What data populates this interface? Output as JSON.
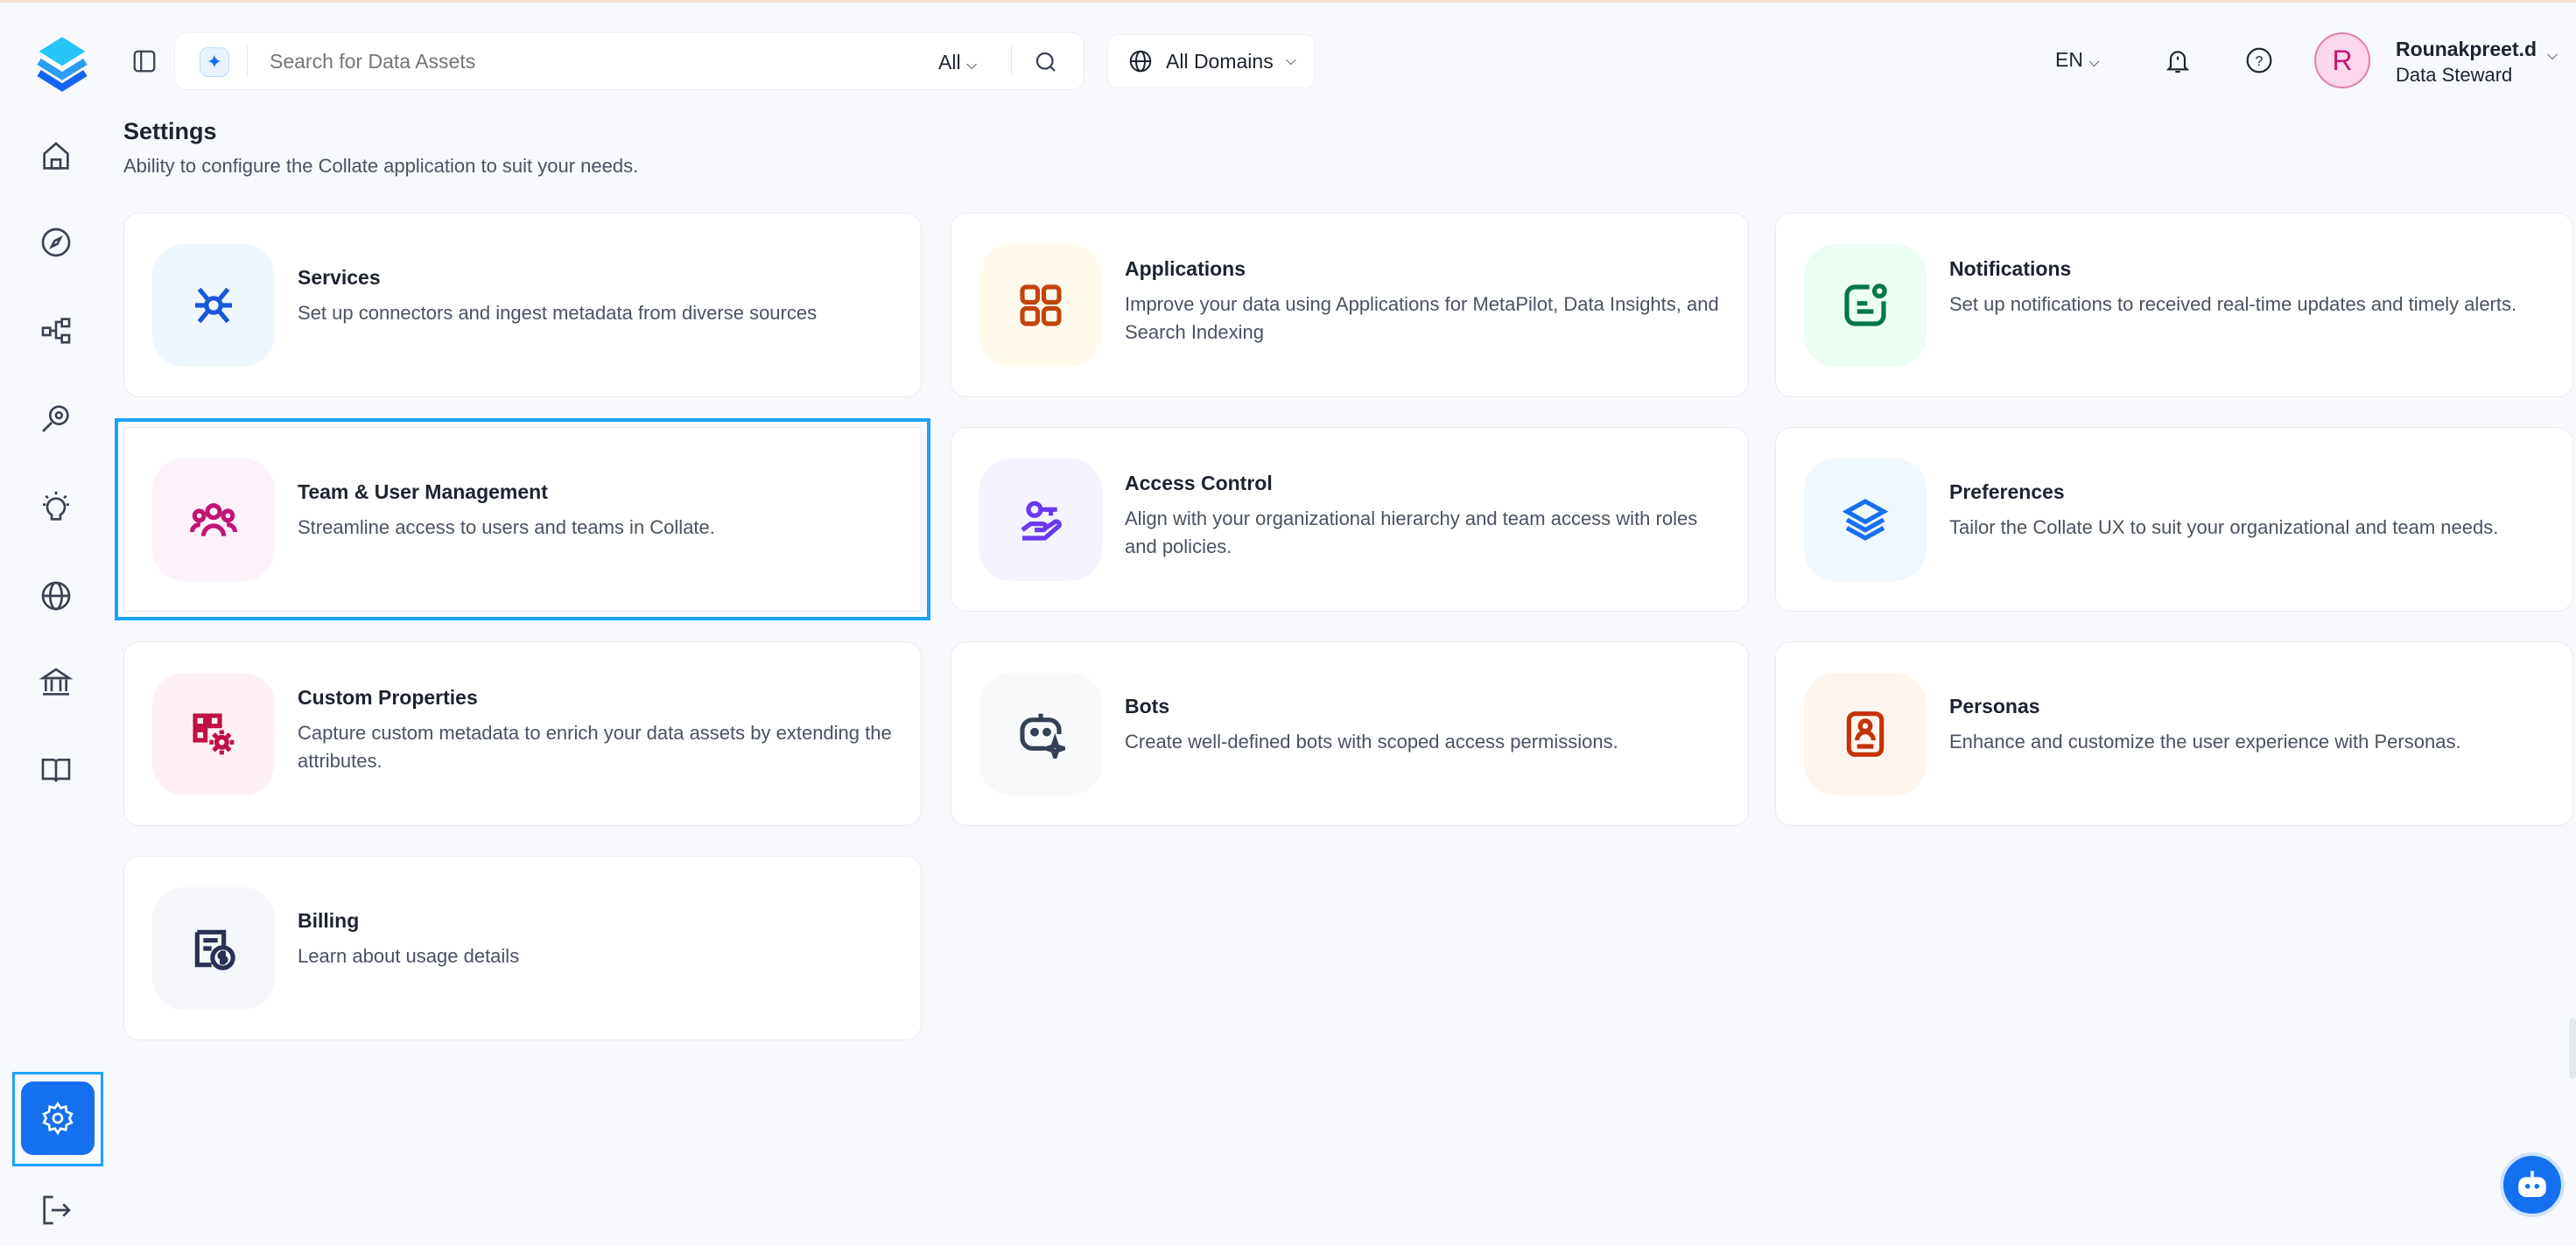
{
  "header": {
    "search": {
      "placeholder": "Search for Data Assets",
      "filter": "All"
    },
    "domain": "All Domains",
    "language": "EN",
    "user": {
      "initial": "R",
      "name": "Rounakpreet.d",
      "role": "Data Steward"
    }
  },
  "page": {
    "title": "Settings",
    "subtitle": "Ability to configure the Collate application to suit your needs."
  },
  "sidebar": {
    "items": [
      "home",
      "explore",
      "lineage",
      "observability",
      "insights",
      "domains",
      "governance",
      "glossary",
      "settings",
      "logout"
    ],
    "active": "settings",
    "accent": "#1570ef"
  },
  "cards": [
    {
      "title": "Services",
      "desc": "Set up connectors and ingest metadata from diverse sources",
      "icon": "services-icon",
      "bg": "#eef6ff",
      "color": "#1a56db"
    },
    {
      "title": "Applications",
      "desc": "Improve your data using Applications for MetaPilot, Data Insights, and Search Indexing",
      "icon": "apps-grid-icon",
      "bg": "#fffaeb",
      "color": "#c4420c"
    },
    {
      "title": "Notifications",
      "desc": "Set up notifications to received real-time updates and timely alerts.",
      "icon": "notification-icon",
      "bg": "#ecfdf3",
      "color": "#067647"
    },
    {
      "title": "Team & User Management",
      "desc": "Streamline access to users and teams in Collate.",
      "icon": "users-icon",
      "bg": "#fdf2fa",
      "color": "#c11574"
    },
    {
      "title": "Access Control",
      "desc": "Align with your organizational hierarchy and team access with roles and policies.",
      "icon": "key-hand-icon",
      "bg": "#f4f3ff",
      "color": "#6938ef"
    },
    {
      "title": "Preferences",
      "desc": "Tailor the Collate UX to suit your organizational and team needs.",
      "icon": "layers-icon",
      "bg": "#eff8ff",
      "color": "#1570ef"
    },
    {
      "title": "Custom Properties",
      "desc": "Capture custom metadata to enrich your data assets by extending the attributes.",
      "icon": "grid-gear-icon",
      "bg": "#fff1f3",
      "color": "#c01048"
    },
    {
      "title": "Bots",
      "desc": "Create well-defined bots with scoped access permissions.",
      "icon": "bot-icon",
      "bg": "#f8f9fb",
      "color": "#344054"
    },
    {
      "title": "Personas",
      "desc": "Enhance and customize the user experience with Personas.",
      "icon": "persona-icon",
      "bg": "#fef6ee",
      "color": "#c4320a"
    },
    {
      "title": "Billing",
      "desc": "Learn about usage details",
      "icon": "billing-icon",
      "bg": "#f5f7fb",
      "color": "#293056"
    }
  ]
}
